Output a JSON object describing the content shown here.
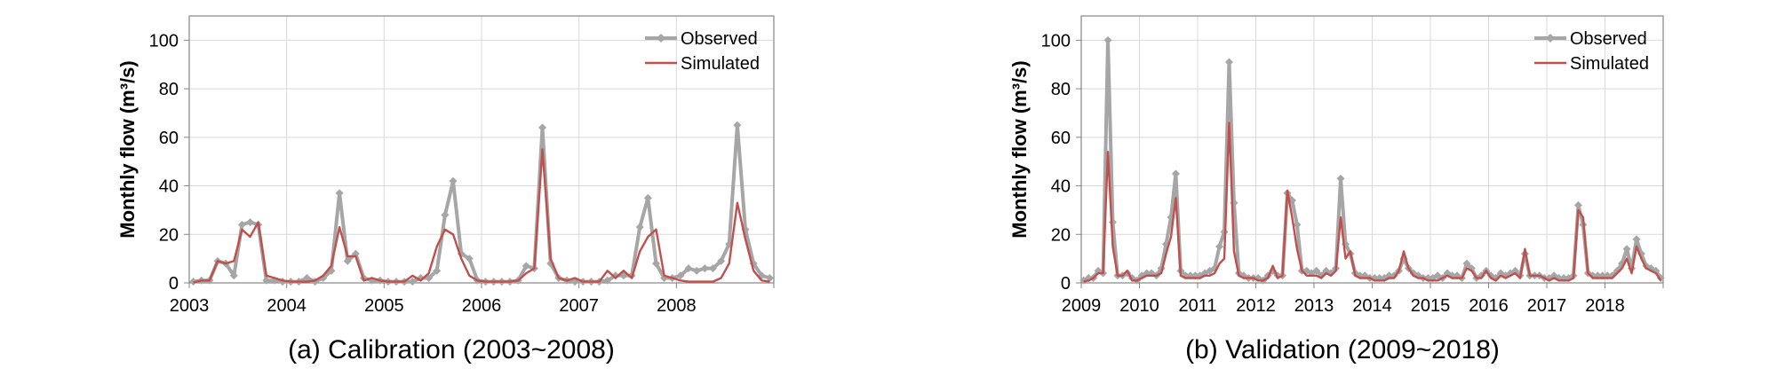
{
  "colors": {
    "observed": "#a6a6a6",
    "simulated": "#c0504d",
    "grid": "#d9d9d9",
    "axis": "#868686"
  },
  "chart_data": [
    {
      "type": "line",
      "title": "(a) Calibration (2003~2008)",
      "ylabel": "Monthly flow (m³/s)",
      "xlabel": "",
      "xlim": [
        2003,
        2009
      ],
      "ylim": [
        0,
        110
      ],
      "grid": true,
      "legend": "top-right",
      "x_ticks": [
        "2003",
        "2004",
        "2005",
        "2006",
        "2007",
        "2008"
      ],
      "y_ticks": [
        "0",
        "20",
        "40",
        "60",
        "80",
        "100"
      ],
      "series": [
        {
          "name": "Observed",
          "marker": "diamond",
          "values": [
            0.5,
            1,
            1,
            9,
            8,
            3,
            24,
            25,
            24,
            1,
            1,
            0.5,
            0.5,
            0.5,
            2,
            0.5,
            2,
            5,
            37,
            9,
            12,
            2,
            1,
            1,
            0.5,
            0.5,
            0.5,
            0.5,
            2,
            2,
            5,
            28,
            42,
            12,
            10,
            1,
            0.5,
            0.5,
            0.5,
            0.5,
            1,
            7,
            6,
            64,
            8,
            2,
            1,
            0.5,
            0.5,
            0.5,
            0.5,
            1,
            3,
            3,
            3,
            23,
            35,
            8,
            2,
            2,
            3,
            6,
            5,
            6,
            6,
            9,
            16,
            65,
            22,
            8,
            3,
            2
          ]
        },
        {
          "name": "Simulated",
          "marker": "none",
          "values": [
            0.2,
            1,
            1,
            9,
            8,
            9,
            22,
            19,
            25,
            3,
            2,
            1,
            0.5,
            0.5,
            0.5,
            1,
            3,
            7,
            23,
            11,
            11,
            1,
            2,
            1,
            0.5,
            0.5,
            0.5,
            3,
            1,
            4,
            15,
            22,
            20,
            10,
            3,
            1,
            0.5,
            0.5,
            0.5,
            0.5,
            1,
            4,
            6,
            55,
            10,
            2,
            1,
            2,
            0.5,
            0.5,
            0.5,
            5,
            2,
            5,
            2,
            13,
            19,
            22,
            3,
            2,
            1,
            0.5,
            0.5,
            0.5,
            0.5,
            2,
            8,
            33,
            18,
            5,
            1,
            0.5
          ]
        }
      ]
    },
    {
      "type": "line",
      "title": "(b) Validation (2009~2018)",
      "ylabel": "Monthly flow (m³/s)",
      "xlabel": "",
      "xlim": [
        2009,
        2019
      ],
      "ylim": [
        0,
        110
      ],
      "grid": true,
      "legend": "top-right",
      "x_ticks": [
        "2009",
        "2010",
        "2011",
        "2012",
        "2013",
        "2014",
        "2015",
        "2016",
        "2017",
        "2018"
      ],
      "y_ticks": [
        "0",
        "20",
        "40",
        "60",
        "80",
        "100"
      ],
      "series": [
        {
          "name": "Observed",
          "marker": "diamond",
          "values": [
            1,
            2,
            2,
            5,
            4,
            100,
            25,
            3,
            3,
            4,
            2,
            1,
            3,
            4,
            4,
            3,
            6,
            16,
            27,
            45,
            5,
            3,
            3,
            3,
            3,
            4,
            5,
            6,
            15,
            21,
            91,
            33,
            4,
            3,
            2,
            2,
            2,
            1,
            3,
            5,
            3,
            3,
            37,
            34,
            24,
            5,
            5,
            4,
            5,
            3,
            5,
            4,
            6,
            43,
            16,
            12,
            4,
            3,
            3,
            2,
            2,
            2,
            2,
            3,
            3,
            5,
            10,
            6,
            4,
            3,
            2,
            2,
            2,
            3,
            2,
            4,
            3,
            3,
            2,
            8,
            6,
            2,
            3,
            5,
            3,
            2,
            4,
            3,
            4,
            5,
            3,
            12,
            3,
            3,
            3,
            2,
            2,
            3,
            2,
            2,
            2,
            3,
            32,
            24,
            4,
            3,
            3,
            3,
            3,
            3,
            5,
            8,
            14,
            6,
            18,
            12,
            7,
            6,
            5,
            2
          ]
        },
        {
          "name": "Simulated",
          "marker": "none",
          "values": [
            0.5,
            1,
            2,
            4,
            4,
            54,
            15,
            3,
            3,
            5,
            1,
            1,
            2,
            3,
            3,
            3,
            4,
            12,
            19,
            35,
            3,
            2,
            2,
            2,
            2,
            3,
            3,
            4,
            8,
            10,
            66,
            13,
            3,
            2,
            2,
            2,
            1,
            1,
            2,
            7,
            2,
            3,
            38,
            27,
            14,
            5,
            3,
            3,
            3,
            2,
            4,
            3,
            5,
            27,
            10,
            13,
            3,
            2,
            2,
            2,
            1,
            1,
            1,
            2,
            2,
            5,
            13,
            6,
            3,
            2,
            2,
            1,
            1,
            1,
            2,
            3,
            2,
            2,
            2,
            6,
            5,
            2,
            2,
            5,
            2,
            1,
            3,
            2,
            3,
            4,
            2,
            14,
            3,
            3,
            3,
            2,
            1,
            2,
            1,
            1,
            1,
            2,
            30,
            27,
            4,
            2,
            2,
            2,
            2,
            2,
            4,
            6,
            10,
            4,
            15,
            10,
            6,
            5,
            4,
            1
          ]
        }
      ]
    }
  ]
}
